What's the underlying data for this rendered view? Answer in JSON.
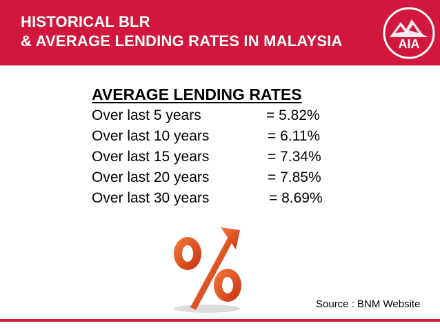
{
  "header": {
    "title_line1": "HISTORICAL BLR",
    "title_line2": "& AVERAGE LENDING RATES IN MALAYSIA",
    "logo_text": "AIA",
    "color": "#d1183c"
  },
  "section": {
    "heading": "AVERAGE LENDING RATES",
    "rows": [
      {
        "label": "Over last 5 years",
        "value": "= 5.82%"
      },
      {
        "label": "Over last 10 years",
        "value": "= 6.11%"
      },
      {
        "label": "Over last 15 years",
        "value": "= 7.34%"
      },
      {
        "label": "Over last 20 years",
        "value": "= 7.85%"
      },
      {
        "label": "Over last 30 years",
        "value": "= 8.69%"
      }
    ]
  },
  "graphic": {
    "icon": "percent-arrow-icon",
    "color": "#e8501a"
  },
  "source": "Source : BNM Website"
}
